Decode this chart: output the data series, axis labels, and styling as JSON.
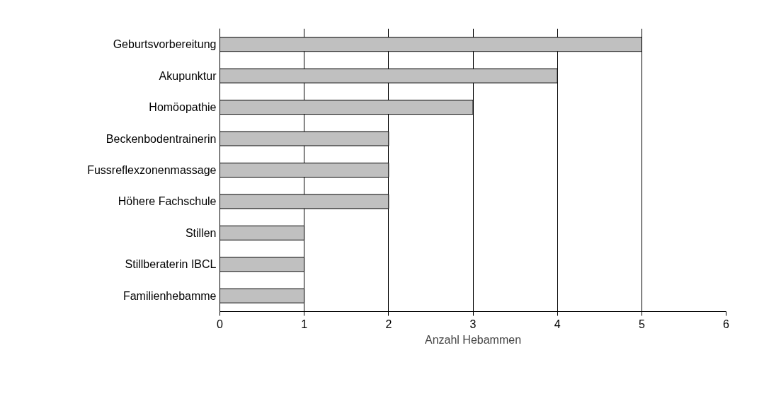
{
  "chart_data": {
    "type": "bar",
    "orientation": "horizontal",
    "xlabel": "Anzahl Hebammen",
    "categories": [
      "Geburtsvorbereitung",
      "Akupunktur",
      "Homöopathie",
      "Beckenbodentrainerin",
      "Fussreflexzonenmassage",
      "Höhere Fachschule",
      "Stillen",
      "Stillberaterin IBCL",
      "Familienhebamme"
    ],
    "values": [
      5,
      4,
      3,
      2,
      2,
      2,
      1,
      1,
      1
    ],
    "color": "#c0c0c0",
    "xlim": [
      0,
      6
    ],
    "xticks": [
      0,
      1,
      2,
      3,
      4,
      5,
      6
    ],
    "grid": "x"
  }
}
